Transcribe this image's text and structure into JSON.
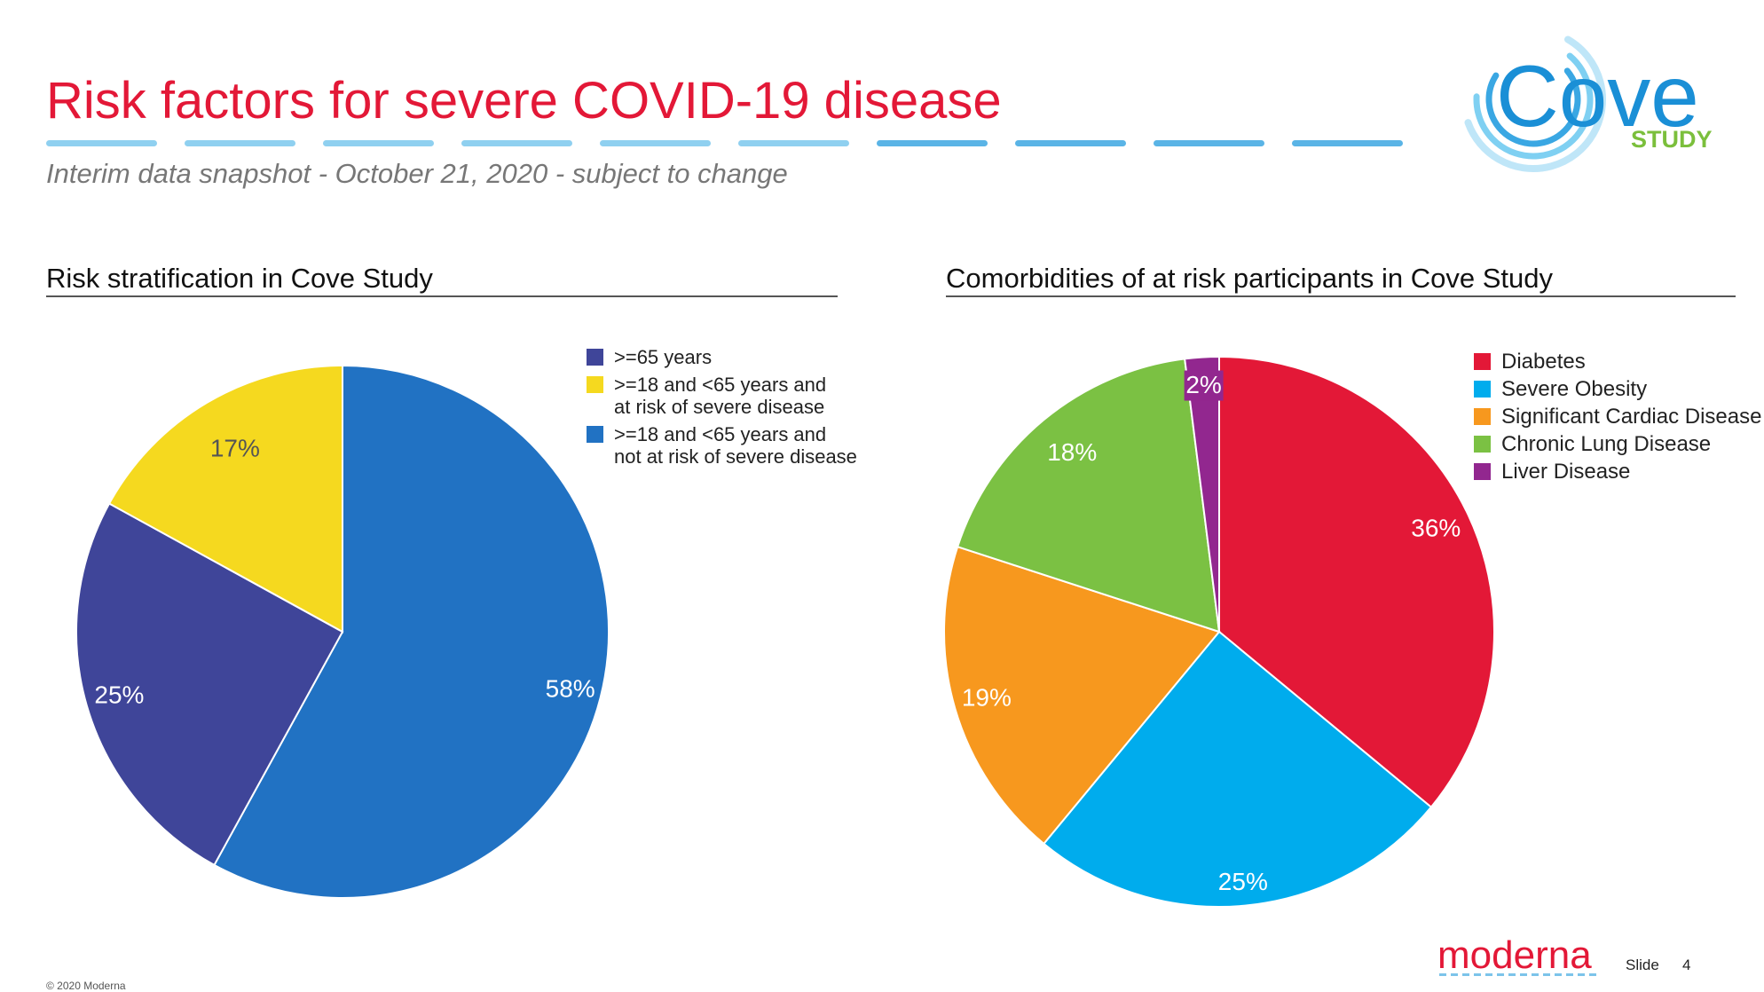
{
  "slide": {
    "title": "Risk factors for severe COVID-19 disease",
    "subtitle": "Interim data snapshot - October 21, 2020 - subject to change",
    "accent_color": "#e31837",
    "dash_color": "#7cc4ea",
    "logo": {
      "main": "Cove",
      "sub": "STUDY",
      "brand_blue": "#1a8fd6",
      "brand_green": "#7bbf3c"
    },
    "footer": {
      "brand": "moderna",
      "slide_label": "Slide",
      "slide_number": "4",
      "copyright": "© 2020 Moderna"
    }
  },
  "chart_data": [
    {
      "type": "pie",
      "title": "Risk stratification in Cove Study",
      "legend_position": "top-right",
      "slices": [
        {
          "label": ">=65 years",
          "value": 25,
          "display": "25%",
          "color": "#3f4599"
        },
        {
          "label": ">=18 and <65 years and\nat risk of severe disease",
          "value": 17,
          "display": "17%",
          "color": "#f5d91f"
        },
        {
          "label": ">=18 and <65 years and\nnot at risk of severe disease",
          "value": 58,
          "display": "58%",
          "color": "#2172c3"
        }
      ]
    },
    {
      "type": "pie",
      "title": "Comorbidities of at risk participants in Cove Study",
      "legend_position": "top-right",
      "slices": [
        {
          "label": "Diabetes",
          "value": 36,
          "display": "36%",
          "color": "#e31837"
        },
        {
          "label": "Severe Obesity",
          "value": 25,
          "display": "25%",
          "color": "#00aced"
        },
        {
          "label": "Significant Cardiac Disease",
          "value": 19,
          "display": "19%",
          "color": "#f7981e"
        },
        {
          "label": "Chronic Lung Disease",
          "value": 18,
          "display": "18%",
          "color": "#7bc143"
        },
        {
          "label": "Liver Disease",
          "value": 2,
          "display": "2%",
          "color": "#92278f"
        }
      ]
    }
  ]
}
